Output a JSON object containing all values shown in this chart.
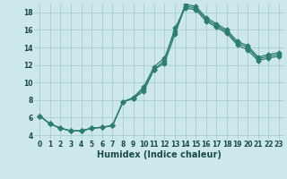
{
  "xlabel": "Humidex (Indice chaleur)",
  "bg_color": "#cde8ec",
  "line_color": "#2e7d6e",
  "grid_color": "#aecfd4",
  "xlim": [
    -0.5,
    23.5
  ],
  "ylim": [
    3.5,
    19.0
  ],
  "xticks": [
    0,
    1,
    2,
    3,
    4,
    5,
    6,
    7,
    8,
    9,
    10,
    11,
    12,
    13,
    14,
    15,
    16,
    17,
    18,
    19,
    20,
    21,
    22,
    23
  ],
  "yticks": [
    4,
    6,
    8,
    10,
    12,
    14,
    16,
    18
  ],
  "line1_x": [
    0,
    1,
    2,
    3,
    4,
    5,
    6,
    7,
    8,
    9,
    10,
    11,
    12,
    13,
    14,
    15,
    16,
    17,
    18,
    19,
    20,
    21,
    22,
    23
  ],
  "line1_y": [
    6.2,
    5.3,
    4.8,
    4.5,
    4.5,
    4.8,
    4.9,
    5.1,
    7.8,
    8.2,
    9.0,
    11.5,
    12.5,
    16.2,
    18.5,
    18.3,
    17.0,
    16.3,
    15.6,
    14.3,
    13.7,
    12.5,
    12.8,
    13.0
  ],
  "line2_x": [
    0,
    1,
    2,
    3,
    4,
    5,
    6,
    7,
    8,
    9,
    10,
    11,
    12,
    13,
    14,
    15,
    16,
    17,
    18,
    19,
    20,
    21,
    22,
    23
  ],
  "line2_y": [
    6.2,
    5.3,
    4.8,
    4.5,
    4.5,
    4.8,
    4.9,
    5.1,
    7.8,
    8.2,
    9.3,
    11.5,
    12.2,
    15.5,
    18.7,
    18.5,
    17.2,
    16.5,
    15.8,
    14.5,
    14.0,
    12.7,
    13.0,
    13.2
  ],
  "line3_x": [
    0,
    1,
    2,
    3,
    4,
    5,
    6,
    7,
    8,
    9,
    10,
    11,
    12,
    13,
    14,
    15,
    16,
    17,
    18,
    19,
    20,
    21,
    22,
    23
  ],
  "line3_y": [
    6.2,
    5.3,
    4.8,
    4.5,
    4.5,
    4.8,
    4.9,
    5.1,
    7.8,
    8.3,
    9.5,
    11.8,
    12.8,
    15.8,
    18.9,
    18.7,
    17.4,
    16.7,
    16.0,
    14.7,
    14.2,
    12.9,
    13.2,
    13.4
  ],
  "xlabel_fontsize": 7,
  "tick_fontsize": 5.5,
  "lw": 0.9,
  "ms": 2.5
}
